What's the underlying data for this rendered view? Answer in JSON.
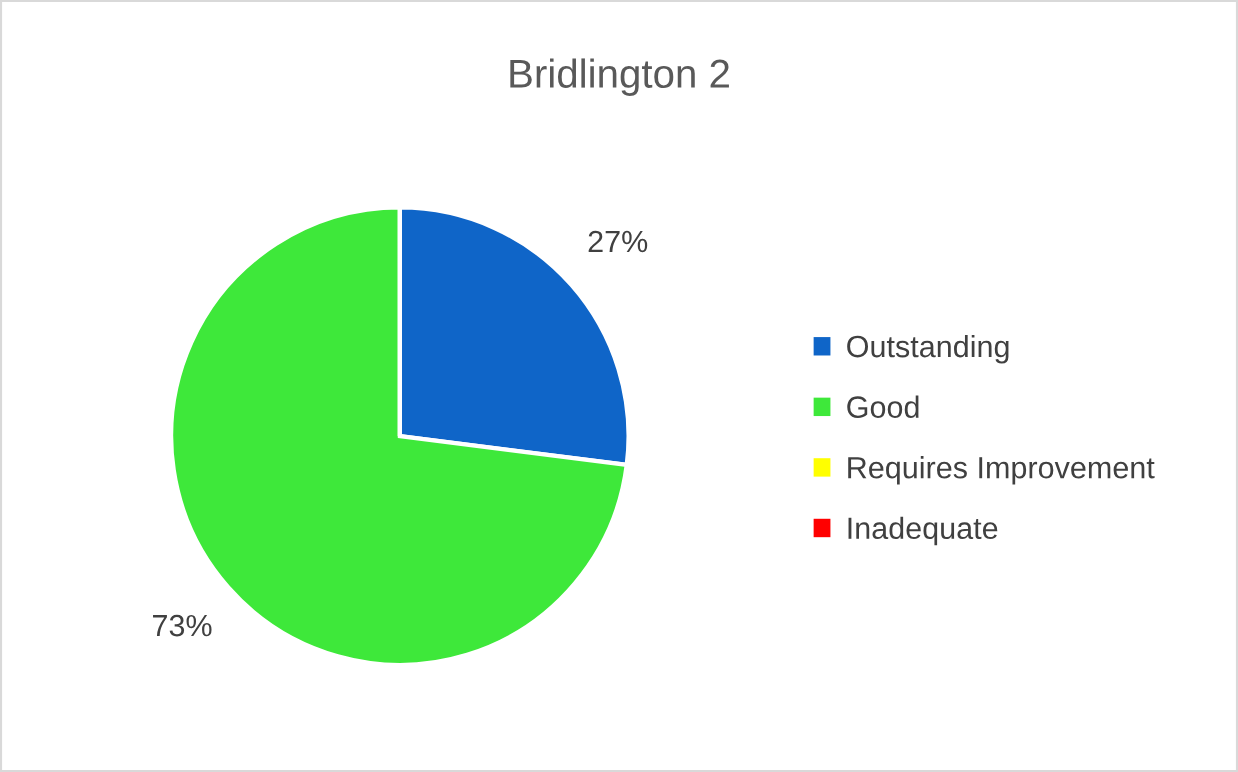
{
  "chart_data": {
    "type": "pie",
    "title": "Bridlington 2",
    "categories": [
      "Outstanding",
      "Good",
      "Requires Improvement",
      "Inadequate"
    ],
    "values": [
      27,
      73,
      0,
      0
    ],
    "colors": [
      "#0f65c8",
      "#3ee83a",
      "#ffff00",
      "#ff0000"
    ],
    "value_labels": [
      "27%",
      "73%",
      null,
      null
    ],
    "legend": "right"
  }
}
